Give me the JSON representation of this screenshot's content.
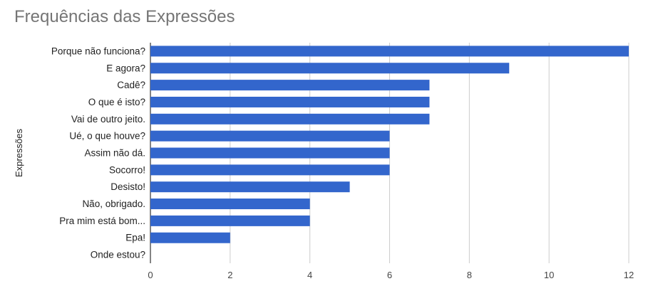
{
  "chart_data": {
    "type": "bar",
    "orientation": "horizontal",
    "title": "Frequências das Expressões",
    "ylabel": "Expressões",
    "xlabel": "",
    "categories": [
      "Porque não funciona?",
      "E agora?",
      "Cadê?",
      "O que é isto?",
      "Vai de outro jeito.",
      "Ué, o que houve?",
      "Assim não dá.",
      "Socorro!",
      "Desisto!",
      "Não, obrigado.",
      "Pra mim está bom...",
      "Epa!",
      "Onde estou?"
    ],
    "values": [
      12,
      9,
      7,
      7,
      7,
      6,
      6,
      6,
      5,
      4,
      4,
      2,
      0
    ],
    "xlim": [
      0,
      12
    ],
    "xticks": [
      0,
      2,
      4,
      6,
      8,
      10,
      12
    ],
    "grid": true,
    "legend": "none",
    "bar_color": "#3366cc",
    "grid_color": "#cccccc",
    "axis_color": "#333333"
  }
}
